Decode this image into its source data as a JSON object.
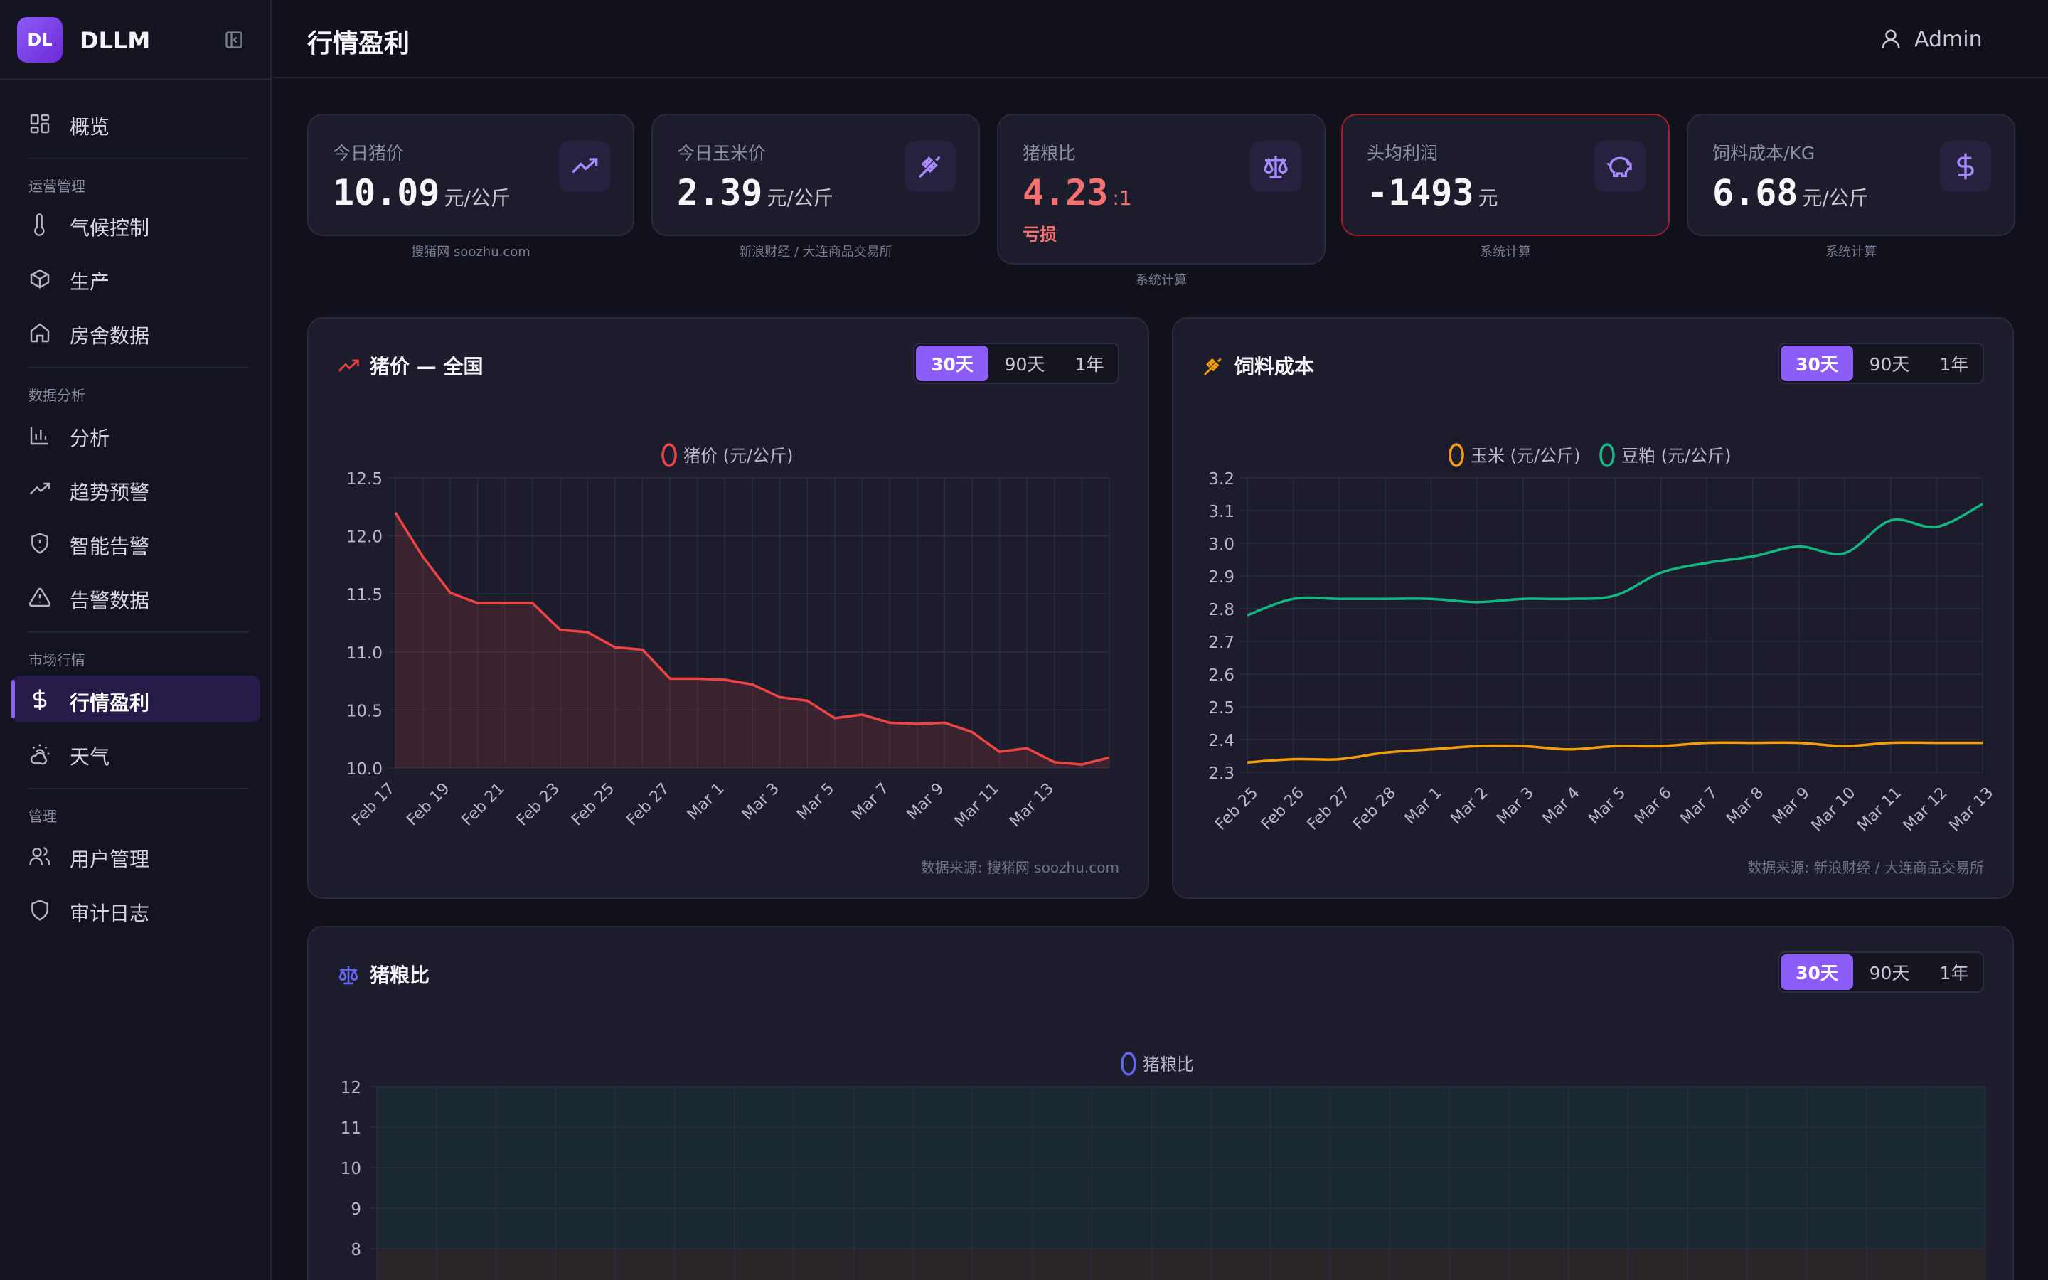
{
  "app": {
    "brand_initials": "DL",
    "brand_name": "DLLM"
  },
  "header": {
    "title": "行情盈利",
    "user": "Admin"
  },
  "sidebar": {
    "overview": "概览",
    "groups": [
      "运营管理",
      "数据分析",
      "市场行情",
      "管理"
    ],
    "items": [
      {
        "label": "气候控制",
        "icon": "thermometer-icon"
      },
      {
        "label": "生产",
        "icon": "box-icon"
      },
      {
        "label": "房舍数据",
        "icon": "home-icon"
      },
      {
        "label": "分析",
        "icon": "bar-chart-icon"
      },
      {
        "label": "趋势预警",
        "icon": "trend-up-icon"
      },
      {
        "label": "智能告警",
        "icon": "shield-alert-icon"
      },
      {
        "label": "告警数据",
        "icon": "warning-triangle-icon"
      },
      {
        "label": "行情盈利",
        "icon": "dollar-icon",
        "active": true
      },
      {
        "label": "天气",
        "icon": "weather-icon"
      },
      {
        "label": "用户管理",
        "icon": "users-icon"
      },
      {
        "label": "审计日志",
        "icon": "shield-icon"
      }
    ]
  },
  "stats": [
    {
      "title": "今日猪价",
      "value": "10.09",
      "unit": "元/公斤",
      "source": "搜猪网 soozhu.com",
      "icon": "trend-up-icon"
    },
    {
      "title": "今日玉米价",
      "value": "2.39",
      "unit": "元/公斤",
      "source": "新浪财经 / 大连商品交易所",
      "icon": "wheat-icon"
    },
    {
      "title": "猪粮比",
      "value": "4.23",
      "unit": ":1",
      "status": "亏损",
      "source": "系统计算",
      "icon": "scale-icon"
    },
    {
      "title": "头均利润",
      "value": "-1493",
      "unit": "元",
      "source": "系统计算",
      "icon": "piggy-bank-icon"
    },
    {
      "title": "饲料成本/KG",
      "value": "6.68",
      "unit": "元/公斤",
      "source": "系统计算",
      "icon": "dollar-icon"
    }
  ],
  "ranges": [
    "30天",
    "90天",
    "1年"
  ],
  "colors": {
    "accent": "#8b5cf6",
    "pig": "#ef4444",
    "corn": "#f59e0b",
    "soy": "#10b981",
    "ratio": "#6366f1",
    "loss": "#f87171"
  },
  "panels": {
    "pig": {
      "title": "猪价 — 全国",
      "footnote": "数据来源: 搜猪网 soozhu.com"
    },
    "feed": {
      "title": "饲料成本",
      "footnote": "数据来源: 新浪财经 / 大连商品交易所"
    },
    "ratio": {
      "title": "猪粮比"
    }
  },
  "chart_data": [
    {
      "type": "area",
      "legend": [
        "猪价 (元/公斤)"
      ],
      "ylim": [
        10.0,
        12.5
      ],
      "yticks": [
        "10.0",
        "10.5",
        "11.0",
        "11.5",
        "12.0",
        "12.5"
      ],
      "xticks": [
        "Feb 17",
        "Feb 19",
        "Feb 21",
        "Feb 23",
        "Feb 25",
        "Feb 27",
        "Mar 1",
        "Mar 3",
        "Mar 5",
        "Mar 7",
        "Mar 9",
        "Mar 11",
        "Mar 13"
      ],
      "x_start": "Feb 17",
      "series": [
        {
          "name": "猪价 (元/公斤)",
          "values": [
            12.2,
            11.82,
            11.51,
            11.42,
            11.42,
            11.42,
            11.19,
            11.17,
            11.04,
            11.02,
            10.77,
            10.77,
            10.76,
            10.72,
            10.61,
            10.58,
            10.43,
            10.46,
            10.39,
            10.38,
            10.39,
            10.31,
            10.14,
            10.17,
            10.05,
            10.03,
            10.09
          ]
        }
      ],
      "grid": true
    },
    {
      "type": "line",
      "legend": [
        "玉米 (元/公斤)",
        "豆粕 (元/公斤)"
      ],
      "ylim": [
        2.3,
        3.2
      ],
      "yticks": [
        "2.3",
        "2.4",
        "2.5",
        "2.6",
        "2.7",
        "2.8",
        "2.9",
        "3.0",
        "3.1",
        "3.2"
      ],
      "categories": [
        "Feb 25",
        "Feb 26",
        "Feb 27",
        "Feb 28",
        "Mar 1",
        "Mar 2",
        "Mar 3",
        "Mar 4",
        "Mar 5",
        "Mar 6",
        "Mar 7",
        "Mar 8",
        "Mar 9",
        "Mar 10",
        "Mar 11",
        "Mar 12",
        "Mar 13"
      ],
      "series": [
        {
          "name": "玉米 (元/公斤)",
          "values": [
            2.33,
            2.34,
            2.34,
            2.36,
            2.37,
            2.38,
            2.38,
            2.37,
            2.38,
            2.38,
            2.39,
            2.39,
            2.39,
            2.38,
            2.39,
            2.39,
            2.39
          ]
        },
        {
          "name": "豆粕 (元/公斤)",
          "values": [
            2.78,
            2.83,
            2.83,
            2.83,
            2.83,
            2.82,
            2.83,
            2.83,
            2.84,
            2.91,
            2.94,
            2.96,
            2.99,
            2.97,
            3.07,
            3.05,
            3.12
          ]
        }
      ],
      "grid": true
    },
    {
      "type": "line",
      "legend": [
        "猪粮比"
      ],
      "yticks_visible": [
        "8",
        "9",
        "10",
        "11",
        "12"
      ],
      "ylim_visible": [
        8,
        12
      ],
      "series": [
        {
          "name": "猪粮比",
          "values": []
        }
      ],
      "grid": true
    }
  ]
}
